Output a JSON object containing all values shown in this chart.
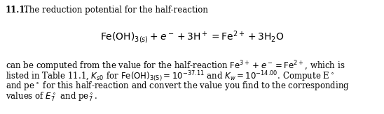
{
  "problem_number": "11.1.",
  "intro_text": "  The reduction potential for the half-reaction",
  "background_color": "#ffffff",
  "text_color": "#000000",
  "font_size": 8.5,
  "fig_width": 5.48,
  "fig_height": 1.64,
  "dpi": 100
}
